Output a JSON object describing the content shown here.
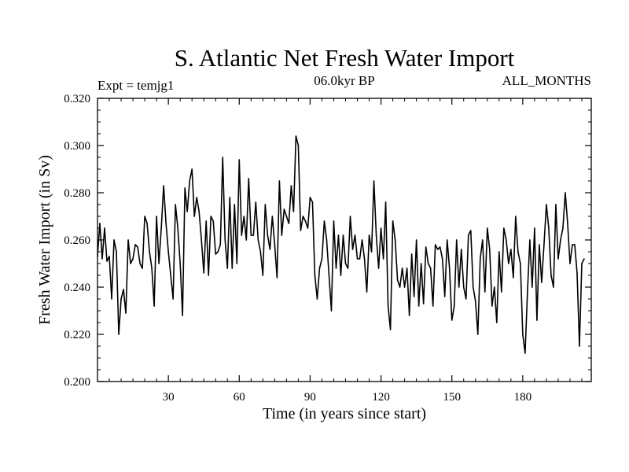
{
  "chart_data": {
    "type": "line",
    "title": "S. Atlantic Net Fresh Water Import",
    "subtitle_left": "Expt = temjg1",
    "subtitle_center": "06.0kyr BP",
    "subtitle_right": "ALL_MONTHS",
    "xlabel": "Time (in years since start)",
    "ylabel": "Fresh Water Import (in Sv)",
    "xlim": [
      0,
      209
    ],
    "ylim": [
      0.2,
      0.32
    ],
    "xticks": [
      30,
      60,
      90,
      120,
      150,
      180
    ],
    "yticks": [
      0.2,
      0.22,
      0.24,
      0.26,
      0.28,
      0.3,
      0.32
    ],
    "ytick_labels": [
      "0.200",
      "0.220",
      "0.240",
      "0.260",
      "0.280",
      "0.300",
      "0.320"
    ],
    "grid": false,
    "series": [
      {
        "name": "Net Fresh Water Import",
        "x_start": 0,
        "x_step": 1,
        "values": [
          0.253,
          0.267,
          0.252,
          0.265,
          0.251,
          0.253,
          0.235,
          0.26,
          0.255,
          0.22,
          0.235,
          0.239,
          0.229,
          0.26,
          0.25,
          0.252,
          0.258,
          0.257,
          0.25,
          0.248,
          0.27,
          0.267,
          0.255,
          0.248,
          0.232,
          0.27,
          0.25,
          0.265,
          0.283,
          0.267,
          0.255,
          0.245,
          0.235,
          0.275,
          0.265,
          0.25,
          0.228,
          0.282,
          0.272,
          0.285,
          0.29,
          0.27,
          0.278,
          0.272,
          0.26,
          0.246,
          0.268,
          0.245,
          0.27,
          0.268,
          0.254,
          0.255,
          0.258,
          0.295,
          0.26,
          0.248,
          0.278,
          0.248,
          0.275,
          0.25,
          0.294,
          0.262,
          0.27,
          0.26,
          0.286,
          0.262,
          0.262,
          0.276,
          0.26,
          0.255,
          0.245,
          0.275,
          0.262,
          0.256,
          0.27,
          0.258,
          0.244,
          0.285,
          0.262,
          0.273,
          0.27,
          0.267,
          0.283,
          0.272,
          0.304,
          0.3,
          0.264,
          0.27,
          0.268,
          0.265,
          0.278,
          0.276,
          0.245,
          0.235,
          0.248,
          0.252,
          0.268,
          0.26,
          0.245,
          0.23,
          0.268,
          0.248,
          0.262,
          0.245,
          0.262,
          0.25,
          0.248,
          0.27,
          0.256,
          0.262,
          0.252,
          0.252,
          0.26,
          0.252,
          0.238,
          0.262,
          0.255,
          0.285,
          0.262,
          0.248,
          0.265,
          0.252,
          0.276,
          0.232,
          0.222,
          0.268,
          0.26,
          0.243,
          0.24,
          0.248,
          0.24,
          0.248,
          0.228,
          0.254,
          0.236,
          0.26,
          0.232,
          0.25,
          0.233,
          0.257,
          0.25,
          0.248,
          0.232,
          0.258,
          0.256,
          0.257,
          0.252,
          0.236,
          0.26,
          0.248,
          0.226,
          0.232,
          0.26,
          0.24,
          0.256,
          0.24,
          0.235,
          0.262,
          0.264,
          0.24,
          0.234,
          0.22,
          0.252,
          0.26,
          0.238,
          0.265,
          0.256,
          0.232,
          0.24,
          0.225,
          0.255,
          0.238,
          0.265,
          0.26,
          0.25,
          0.256,
          0.244,
          0.27,
          0.255,
          0.25,
          0.22,
          0.212,
          0.238,
          0.26,
          0.24,
          0.265,
          0.226,
          0.258,
          0.242,
          0.258,
          0.275,
          0.265,
          0.245,
          0.24,
          0.275,
          0.252,
          0.26,
          0.265,
          0.28,
          0.267,
          0.25,
          0.258,
          0.258,
          0.246,
          0.215,
          0.25,
          0.252
        ]
      }
    ]
  }
}
